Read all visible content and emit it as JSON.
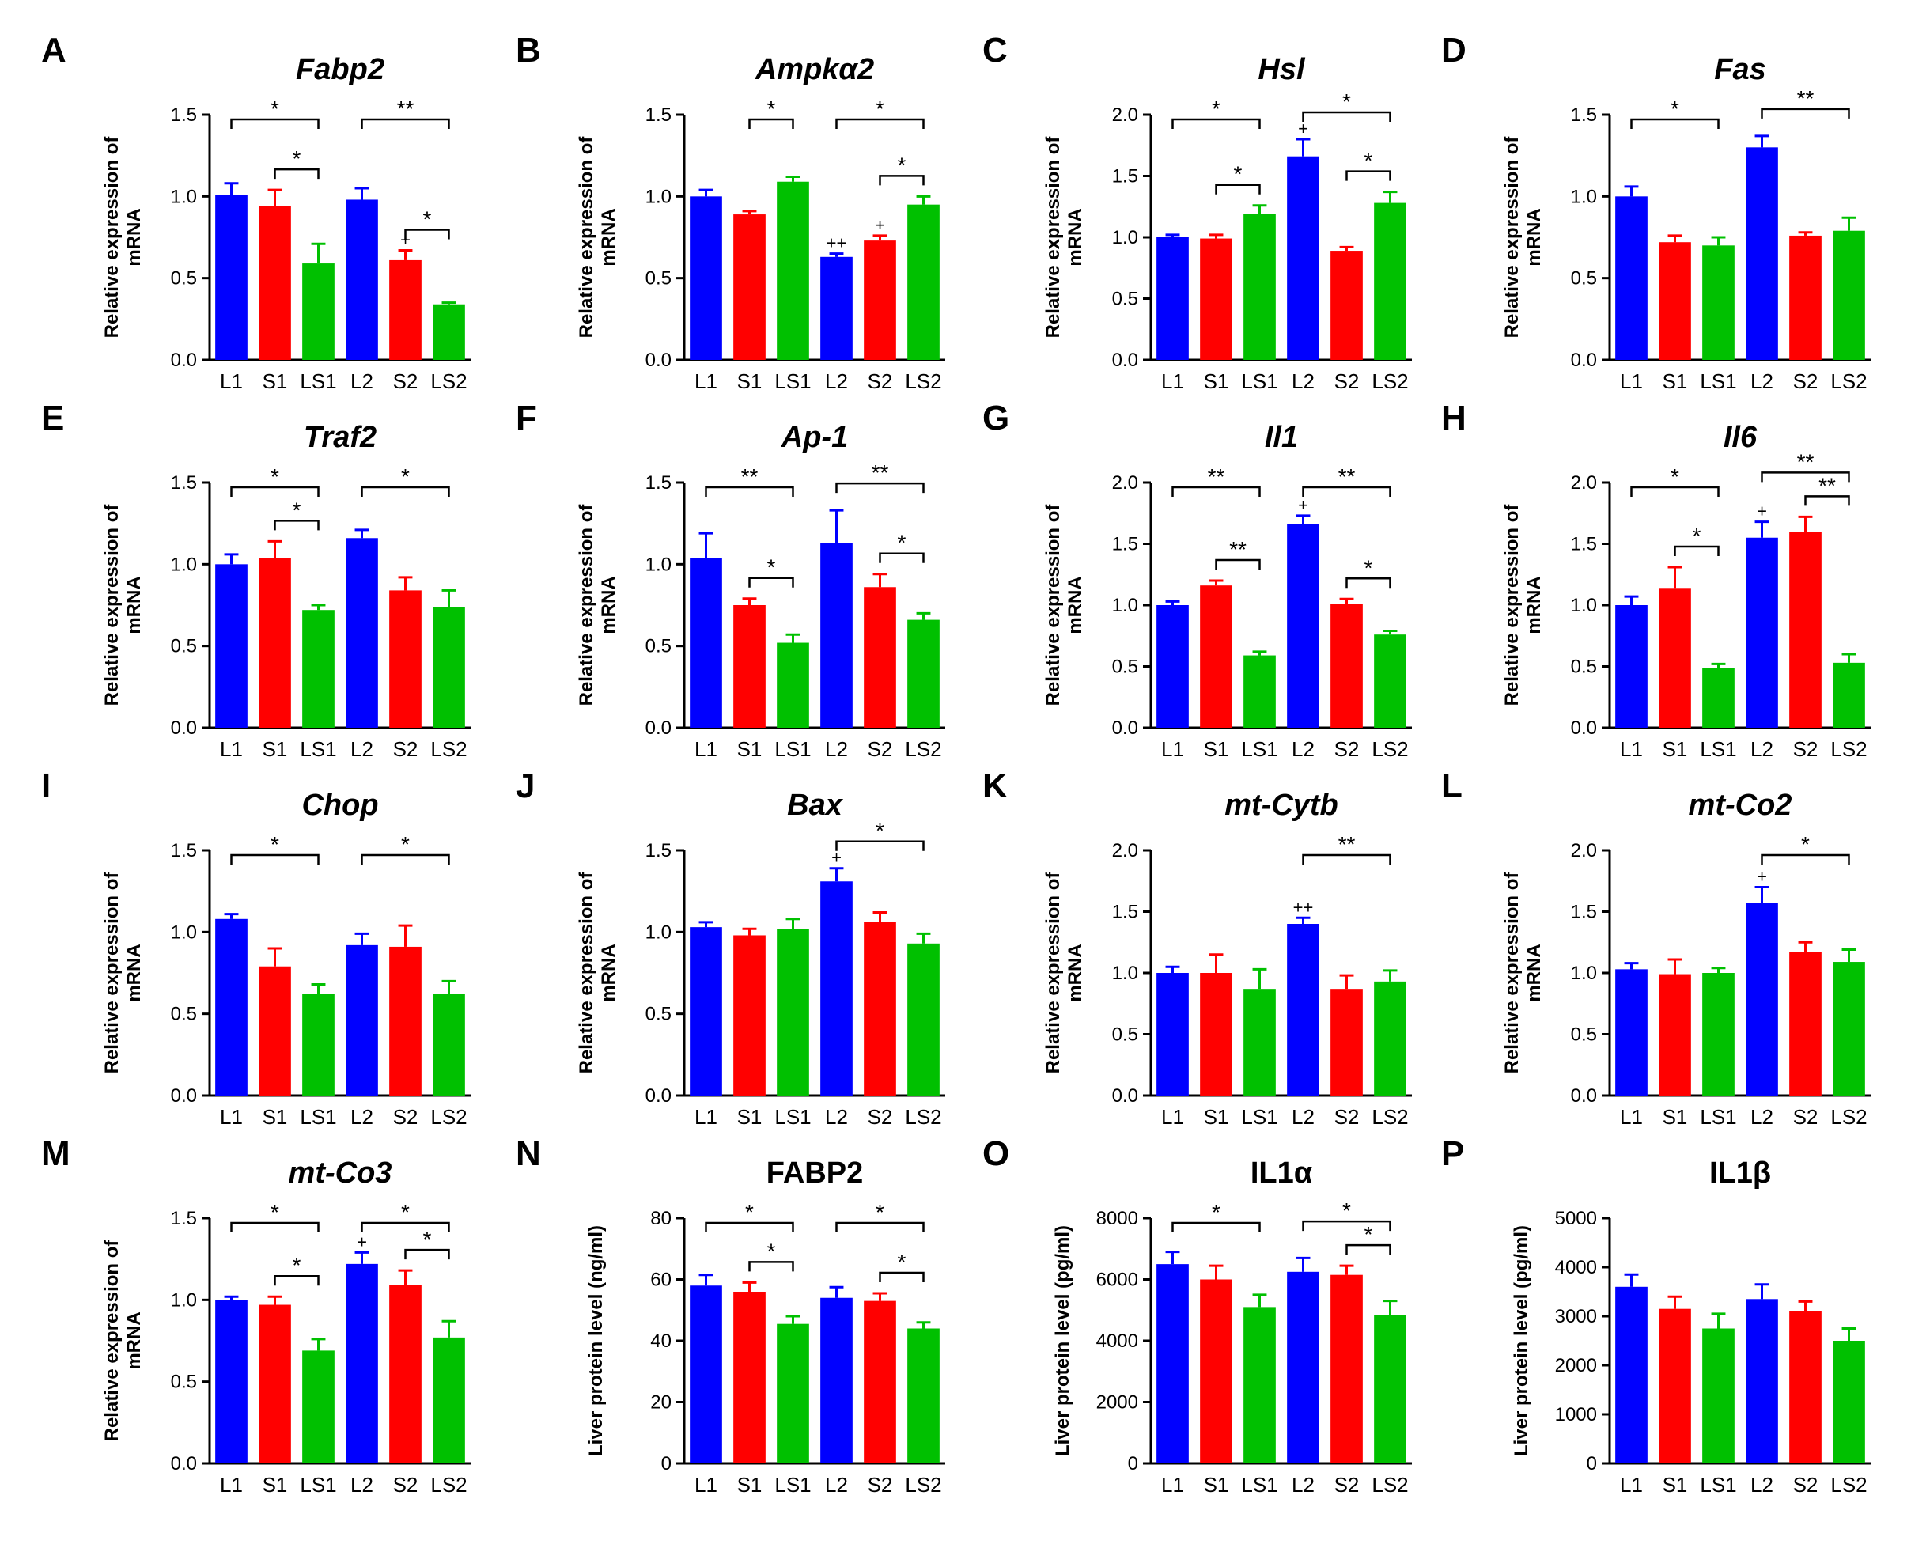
{
  "figure": {
    "colors": {
      "L": "#0000ff",
      "S": "#ff0000",
      "LS": "#00c000",
      "axis": "#000000"
    },
    "categories": [
      "L1",
      "S1",
      "LS1",
      "L2",
      "S2",
      "LS2"
    ],
    "ylabels": {
      "mrna": [
        "Relative expression of",
        "mRNA"
      ],
      "ngml": "Liver protein level (ng/ml)",
      "pgml": "Liver protein level (pg/ml)"
    }
  },
  "chart_data": [
    {
      "letter": "A",
      "title": "Fabp2",
      "italic": true,
      "type": "bar",
      "ylabel": "mrna",
      "ylim": [
        0,
        1.5
      ],
      "yticks": [
        0,
        0.5,
        1.0,
        1.5
      ],
      "tick_labels": [
        "0.0",
        "0.5",
        "1.0",
        "1.5"
      ],
      "values": [
        1.01,
        0.94,
        0.59,
        0.98,
        0.61,
        0.34
      ],
      "errors": [
        0.07,
        0.1,
        0.12,
        0.07,
        0.06,
        0.01
      ],
      "sig": [
        {
          "a": 0,
          "b": 2,
          "label": "*",
          "level": 0
        },
        {
          "a": 1,
          "b": 2,
          "label": "*",
          "level": 1
        },
        {
          "a": 3,
          "b": 5,
          "label": "**",
          "level": 0
        },
        {
          "a": 4,
          "b": 5,
          "label": "*",
          "level": 1
        }
      ],
      "plus": [
        {
          "i": 4,
          "label": "+"
        }
      ]
    },
    {
      "letter": "B",
      "title": "Ampkα2",
      "italic": true,
      "type": "bar",
      "ylabel": "mrna",
      "ylim": [
        0,
        1.5
      ],
      "yticks": [
        0,
        0.5,
        1.0,
        1.5
      ],
      "tick_labels": [
        "0.0",
        "0.5",
        "1.0",
        "1.5"
      ],
      "values": [
        1.0,
        0.89,
        1.09,
        0.63,
        0.73,
        0.95
      ],
      "errors": [
        0.04,
        0.02,
        0.03,
        0.02,
        0.03,
        0.05
      ],
      "sig": [
        {
          "a": 1,
          "b": 2,
          "label": "*",
          "level": 0
        },
        {
          "a": 3,
          "b": 5,
          "label": "*",
          "level": 0
        },
        {
          "a": 4,
          "b": 5,
          "label": "*",
          "level": 1
        }
      ],
      "plus": [
        {
          "i": 3,
          "label": "++"
        },
        {
          "i": 4,
          "label": "+"
        }
      ]
    },
    {
      "letter": "C",
      "title": "Hsl",
      "italic": true,
      "type": "bar",
      "ylabel": "mrna",
      "ylim": [
        0,
        2.0
      ],
      "yticks": [
        0,
        0.5,
        1.0,
        1.5,
        2.0
      ],
      "tick_labels": [
        "0.0",
        "0.5",
        "1.0",
        "1.5",
        "2.0"
      ],
      "values": [
        1.0,
        0.99,
        1.19,
        1.66,
        0.89,
        1.28
      ],
      "errors": [
        0.02,
        0.03,
        0.07,
        0.14,
        0.03,
        0.09
      ],
      "sig": [
        {
          "a": 0,
          "b": 2,
          "label": "*",
          "level": 0
        },
        {
          "a": 1,
          "b": 2,
          "label": "*",
          "level": 1
        },
        {
          "a": 3,
          "b": 5,
          "label": "*",
          "level": 0
        },
        {
          "a": 4,
          "b": 5,
          "label": "*",
          "level": 1
        }
      ],
      "plus": [
        {
          "i": 3,
          "label": "+"
        }
      ]
    },
    {
      "letter": "D",
      "title": "Fas",
      "italic": true,
      "type": "bar",
      "ylabel": "mrna",
      "ylim": [
        0,
        1.5
      ],
      "yticks": [
        0,
        0.5,
        1.0,
        1.5
      ],
      "tick_labels": [
        "0.0",
        "0.5",
        "1.0",
        "1.5"
      ],
      "values": [
        1.0,
        0.72,
        0.7,
        1.3,
        0.76,
        0.79
      ],
      "errors": [
        0.06,
        0.04,
        0.05,
        0.07,
        0.02,
        0.08
      ],
      "sig": [
        {
          "a": 0,
          "b": 2,
          "label": "*",
          "level": 0
        },
        {
          "a": 3,
          "b": 5,
          "label": "**",
          "level": 0
        }
      ],
      "plus": []
    },
    {
      "letter": "E",
      "title": "Traf2",
      "italic": true,
      "type": "bar",
      "ylabel": "mrna",
      "ylim": [
        0,
        1.5
      ],
      "yticks": [
        0,
        0.5,
        1.0,
        1.5
      ],
      "tick_labels": [
        "0.0",
        "0.5",
        "1.0",
        "1.5"
      ],
      "values": [
        1.0,
        1.04,
        0.72,
        1.16,
        0.84,
        0.74
      ],
      "errors": [
        0.06,
        0.1,
        0.03,
        0.05,
        0.08,
        0.1
      ],
      "sig": [
        {
          "a": 0,
          "b": 2,
          "label": "*",
          "level": 0
        },
        {
          "a": 1,
          "b": 2,
          "label": "*",
          "level": 1
        },
        {
          "a": 3,
          "b": 5,
          "label": "*",
          "level": 0
        }
      ],
      "plus": []
    },
    {
      "letter": "F",
      "title": "Ap-1",
      "italic": true,
      "type": "bar",
      "ylabel": "mrna",
      "ylim": [
        0,
        1.5
      ],
      "yticks": [
        0,
        0.5,
        1.0,
        1.5
      ],
      "tick_labels": [
        "0.0",
        "0.5",
        "1.0",
        "1.5"
      ],
      "values": [
        1.04,
        0.75,
        0.52,
        1.13,
        0.86,
        0.66
      ],
      "errors": [
        0.15,
        0.04,
        0.05,
        0.2,
        0.08,
        0.04
      ],
      "sig": [
        {
          "a": 0,
          "b": 2,
          "label": "**",
          "level": 0
        },
        {
          "a": 1,
          "b": 2,
          "label": "*",
          "level": 1
        },
        {
          "a": 3,
          "b": 5,
          "label": "**",
          "level": 0
        },
        {
          "a": 4,
          "b": 5,
          "label": "*",
          "level": 1
        }
      ],
      "plus": []
    },
    {
      "letter": "G",
      "title": "Il1",
      "italic": true,
      "type": "bar",
      "ylabel": "mrna",
      "ylim": [
        0,
        2.0
      ],
      "yticks": [
        0,
        0.5,
        1.0,
        1.5,
        2.0
      ],
      "tick_labels": [
        "0.0",
        "0.5",
        "1.0",
        "1.5",
        "2.0"
      ],
      "values": [
        1.0,
        1.16,
        0.59,
        1.66,
        1.01,
        0.76
      ],
      "errors": [
        0.03,
        0.04,
        0.03,
        0.07,
        0.04,
        0.03
      ],
      "sig": [
        {
          "a": 0,
          "b": 2,
          "label": "**",
          "level": 0
        },
        {
          "a": 1,
          "b": 2,
          "label": "**",
          "level": 1
        },
        {
          "a": 3,
          "b": 5,
          "label": "**",
          "level": 0
        },
        {
          "a": 4,
          "b": 5,
          "label": "*",
          "level": 1
        }
      ],
      "plus": [
        {
          "i": 3,
          "label": "+"
        }
      ]
    },
    {
      "letter": "H",
      "title": "Il6",
      "italic": true,
      "type": "bar",
      "ylabel": "mrna",
      "ylim": [
        0,
        2.0
      ],
      "yticks": [
        0,
        0.5,
        1.0,
        1.5,
        2.0
      ],
      "tick_labels": [
        "0.0",
        "0.5",
        "1.0",
        "1.5",
        "2.0"
      ],
      "values": [
        1.0,
        1.14,
        0.49,
        1.55,
        1.6,
        0.53
      ],
      "errors": [
        0.07,
        0.17,
        0.03,
        0.13,
        0.12,
        0.07
      ],
      "sig": [
        {
          "a": 0,
          "b": 2,
          "label": "*",
          "level": 0
        },
        {
          "a": 1,
          "b": 2,
          "label": "*",
          "level": 1
        },
        {
          "a": 3,
          "b": 5,
          "label": "**",
          "level": 0
        },
        {
          "a": 4,
          "b": 5,
          "label": "**",
          "level": 1
        }
      ],
      "plus": [
        {
          "i": 3,
          "label": "+"
        }
      ]
    },
    {
      "letter": "I",
      "title": "Chop",
      "italic": true,
      "type": "bar",
      "ylabel": "mrna",
      "ylim": [
        0,
        1.5
      ],
      "yticks": [
        0,
        0.5,
        1.0,
        1.5
      ],
      "tick_labels": [
        "0.0",
        "0.5",
        "1.0",
        "1.5"
      ],
      "values": [
        1.08,
        0.79,
        0.62,
        0.92,
        0.91,
        0.62
      ],
      "errors": [
        0.03,
        0.11,
        0.06,
        0.07,
        0.13,
        0.08
      ],
      "sig": [
        {
          "a": 0,
          "b": 2,
          "label": "*",
          "level": 0
        },
        {
          "a": 3,
          "b": 5,
          "label": "*",
          "level": 0
        }
      ],
      "plus": []
    },
    {
      "letter": "J",
      "title": "Bax",
      "italic": true,
      "type": "bar",
      "ylabel": "mrna",
      "ylim": [
        0,
        1.5
      ],
      "yticks": [
        0,
        0.5,
        1.0,
        1.5
      ],
      "tick_labels": [
        "0.0",
        "0.5",
        "1.0",
        "1.5"
      ],
      "values": [
        1.03,
        0.98,
        1.02,
        1.31,
        1.06,
        0.93
      ],
      "errors": [
        0.03,
        0.04,
        0.06,
        0.08,
        0.06,
        0.06
      ],
      "sig": [
        {
          "a": 3,
          "b": 5,
          "label": "*",
          "level": 0
        }
      ],
      "plus": [
        {
          "i": 3,
          "label": "+"
        }
      ]
    },
    {
      "letter": "K",
      "title": "mt-Cytb",
      "italic": true,
      "type": "bar",
      "ylabel": "mrna",
      "ylim": [
        0,
        2.0
      ],
      "yticks": [
        0,
        0.5,
        1.0,
        1.5,
        2.0
      ],
      "tick_labels": [
        "0.0",
        "0.5",
        "1.0",
        "1.5",
        "2.0"
      ],
      "values": [
        1.0,
        1.0,
        0.87,
        1.4,
        0.87,
        0.93
      ],
      "errors": [
        0.05,
        0.15,
        0.16,
        0.05,
        0.11,
        0.09
      ],
      "sig": [
        {
          "a": 3,
          "b": 5,
          "label": "**",
          "level": 0
        }
      ],
      "plus": [
        {
          "i": 3,
          "label": "++"
        }
      ]
    },
    {
      "letter": "L",
      "title": "mt-Co2",
      "italic": true,
      "type": "bar",
      "ylabel": "mrna",
      "ylim": [
        0,
        2.0
      ],
      "yticks": [
        0,
        0.5,
        1.0,
        1.5,
        2.0
      ],
      "tick_labels": [
        "0.0",
        "0.5",
        "1.0",
        "1.5",
        "2.0"
      ],
      "values": [
        1.03,
        0.99,
        1.0,
        1.57,
        1.17,
        1.09
      ],
      "errors": [
        0.05,
        0.12,
        0.04,
        0.13,
        0.08,
        0.1
      ],
      "sig": [
        {
          "a": 3,
          "b": 5,
          "label": "*",
          "level": 0
        }
      ],
      "plus": [
        {
          "i": 3,
          "label": "+"
        }
      ]
    },
    {
      "letter": "M",
      "title": "mt-Co3",
      "italic": true,
      "type": "bar",
      "ylabel": "mrna",
      "ylim": [
        0,
        1.5
      ],
      "yticks": [
        0,
        0.5,
        1.0,
        1.5
      ],
      "tick_labels": [
        "0.0",
        "0.5",
        "1.0",
        "1.5"
      ],
      "values": [
        1.0,
        0.97,
        0.69,
        1.22,
        1.09,
        0.77
      ],
      "errors": [
        0.02,
        0.05,
        0.07,
        0.07,
        0.09,
        0.1
      ],
      "sig": [
        {
          "a": 0,
          "b": 2,
          "label": "*",
          "level": 0
        },
        {
          "a": 1,
          "b": 2,
          "label": "*",
          "level": 1
        },
        {
          "a": 3,
          "b": 5,
          "label": "*",
          "level": 0
        },
        {
          "a": 4,
          "b": 5,
          "label": "*",
          "level": 1
        }
      ],
      "plus": [
        {
          "i": 3,
          "label": "+"
        }
      ]
    },
    {
      "letter": "N",
      "title": "FABP2",
      "italic": false,
      "type": "bar",
      "ylabel": "ngml",
      "ylim": [
        0,
        80
      ],
      "yticks": [
        0,
        20,
        40,
        60,
        80
      ],
      "tick_labels": [
        "0",
        "20",
        "40",
        "60",
        "80"
      ],
      "values": [
        58,
        56,
        45.5,
        54,
        53,
        44
      ],
      "errors": [
        3.5,
        3,
        2.5,
        3.5,
        2.5,
        2
      ],
      "sig": [
        {
          "a": 0,
          "b": 2,
          "label": "*",
          "level": 0
        },
        {
          "a": 1,
          "b": 2,
          "label": "*",
          "level": 1
        },
        {
          "a": 3,
          "b": 5,
          "label": "*",
          "level": 0
        },
        {
          "a": 4,
          "b": 5,
          "label": "*",
          "level": 1
        }
      ],
      "plus": []
    },
    {
      "letter": "O",
      "title": "IL1α",
      "italic": false,
      "type": "bar",
      "ylabel": "pgml",
      "ylim": [
        0,
        8000
      ],
      "yticks": [
        0,
        2000,
        4000,
        6000,
        8000
      ],
      "tick_labels": [
        "0",
        "2000",
        "4000",
        "6000",
        "8000"
      ],
      "values": [
        6500,
        6000,
        5100,
        6250,
        6150,
        4850
      ],
      "errors": [
        400,
        450,
        400,
        450,
        300,
        450
      ],
      "sig": [
        {
          "a": 0,
          "b": 2,
          "label": "*",
          "level": 0
        },
        {
          "a": 3,
          "b": 5,
          "label": "*",
          "level": 0
        },
        {
          "a": 4,
          "b": 5,
          "label": "*",
          "level": 1
        }
      ],
      "plus": []
    },
    {
      "letter": "P",
      "title": "IL1β",
      "italic": false,
      "type": "bar",
      "ylabel": "pgml",
      "ylim": [
        0,
        5000
      ],
      "yticks": [
        0,
        1000,
        2000,
        3000,
        4000,
        5000
      ],
      "tick_labels": [
        "0",
        "1000",
        "2000",
        "3000",
        "4000",
        "5000"
      ],
      "values": [
        3600,
        3150,
        2750,
        3350,
        3100,
        2500
      ],
      "errors": [
        250,
        250,
        300,
        300,
        200,
        250
      ],
      "sig": [],
      "plus": []
    }
  ]
}
